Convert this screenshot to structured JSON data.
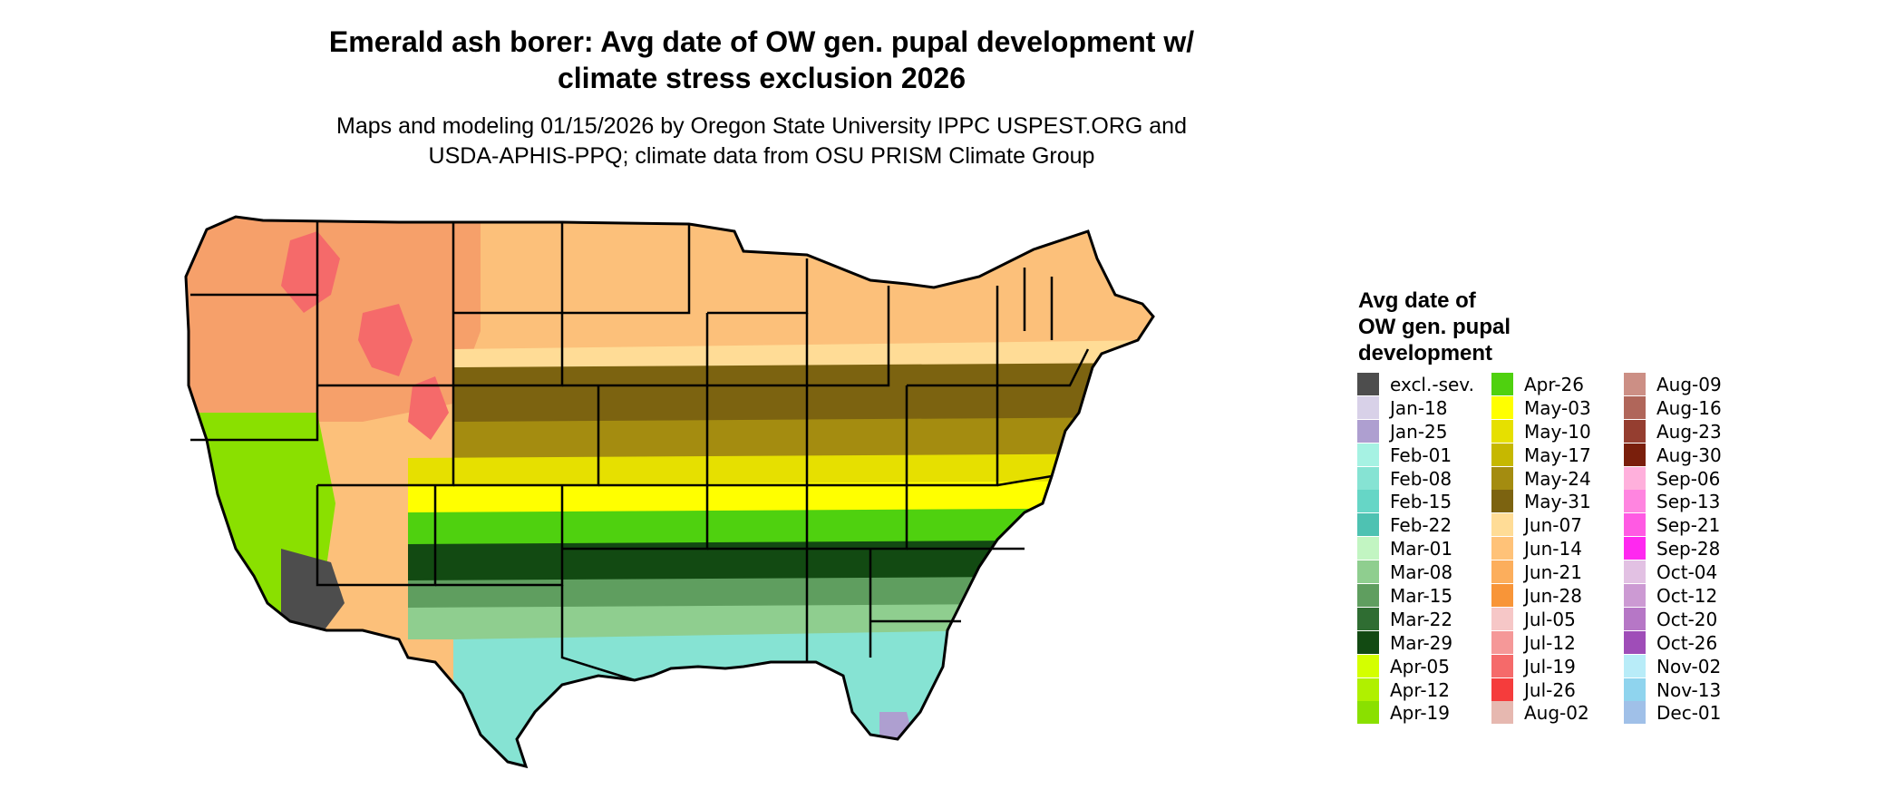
{
  "title": {
    "line1": "Emerald ash borer: Avg date of OW gen. pupal development w/",
    "line2": "climate stress exclusion 2026"
  },
  "subtitle": {
    "line1": "Maps and modeling 01/15/2026 by Oregon State University IPPC USPEST.ORG and",
    "line2": "USDA-APHIS-PPQ; climate data from OSU PRISM Climate Group"
  },
  "legend": {
    "title_lines": [
      "Avg date of",
      "OW gen. pupal",
      "development"
    ],
    "columns": [
      [
        {
          "label": "excl.-sev.",
          "color": "#4d4d4d"
        },
        {
          "label": "Jan-18",
          "color": "#d8d1e8"
        },
        {
          "label": "Jan-25",
          "color": "#ae9fd0"
        },
        {
          "label": "Feb-01",
          "color": "#a6f2e3"
        },
        {
          "label": "Feb-08",
          "color": "#86e3d3"
        },
        {
          "label": "Feb-15",
          "color": "#66d6c6"
        },
        {
          "label": "Feb-22",
          "color": "#4ec2b2"
        },
        {
          "label": "Mar-01",
          "color": "#c2f5c2"
        },
        {
          "label": "Mar-08",
          "color": "#8fce8f"
        },
        {
          "label": "Mar-15",
          "color": "#5f9e5f"
        },
        {
          "label": "Mar-22",
          "color": "#2f6d32"
        },
        {
          "label": "Mar-29",
          "color": "#124a12"
        },
        {
          "label": "Apr-05",
          "color": "#d4ff00"
        },
        {
          "label": "Apr-12",
          "color": "#b0f000"
        },
        {
          "label": "Apr-19",
          "color": "#8ae000"
        }
      ],
      [
        {
          "label": "Apr-26",
          "color": "#4fd10f"
        },
        {
          "label": "May-03",
          "color": "#ffff00"
        },
        {
          "label": "May-10",
          "color": "#e6e000"
        },
        {
          "label": "May-17",
          "color": "#c6b800"
        },
        {
          "label": "May-24",
          "color": "#a48c10"
        },
        {
          "label": "May-31",
          "color": "#7c6310"
        },
        {
          "label": "Jun-07",
          "color": "#ffdc96"
        },
        {
          "label": "Jun-14",
          "color": "#ffc278"
        },
        {
          "label": "Jun-21",
          "color": "#fcae5c"
        },
        {
          "label": "Jun-28",
          "color": "#f89538"
        },
        {
          "label": "Jul-05",
          "color": "#f6c7c7"
        },
        {
          "label": "Jul-12",
          "color": "#f59898"
        },
        {
          "label": "Jul-19",
          "color": "#f56a6a"
        },
        {
          "label": "Jul-26",
          "color": "#f53c3c"
        },
        {
          "label": "Aug-02",
          "color": "#e6b8b0"
        }
      ],
      [
        {
          "label": "Aug-09",
          "color": "#cc8f85"
        },
        {
          "label": "Aug-16",
          "color": "#b0665a"
        },
        {
          "label": "Aug-23",
          "color": "#953e30"
        },
        {
          "label": "Aug-30",
          "color": "#7a1f0c"
        },
        {
          "label": "Sep-06",
          "color": "#ffb0dc"
        },
        {
          "label": "Sep-13",
          "color": "#ff85e0"
        },
        {
          "label": "Sep-21",
          "color": "#ff5ae3"
        },
        {
          "label": "Sep-28",
          "color": "#ff28f0"
        },
        {
          "label": "Oct-04",
          "color": "#e2c1e3"
        },
        {
          "label": "Oct-12",
          "color": "#cc9ad3"
        },
        {
          "label": "Oct-20",
          "color": "#b677c6"
        },
        {
          "label": "Oct-26",
          "color": "#9f4db8"
        },
        {
          "label": "Nov-02",
          "color": "#b8ecf8"
        },
        {
          "label": "Nov-13",
          "color": "#8fd4ee"
        },
        {
          "label": "Dec-01",
          "color": "#a0c0e8"
        }
      ]
    ]
  },
  "map": {
    "zones": [
      {
        "id": "northern-plains",
        "color": "#fcc07a"
      },
      {
        "id": "mountain-west",
        "color": "#f6a06a"
      },
      {
        "id": "high-elevation",
        "color": "#f56a6a"
      },
      {
        "id": "upper-midwest",
        "color": "#ffdc96"
      },
      {
        "id": "central-band",
        "color": "#7c6310"
      },
      {
        "id": "mid-band",
        "color": "#a48c10"
      },
      {
        "id": "south-mid-band",
        "color": "#e6e000"
      },
      {
        "id": "yellow-band",
        "color": "#ffff00"
      },
      {
        "id": "green-band",
        "color": "#4fd10f"
      },
      {
        "id": "dark-green-band",
        "color": "#124a12"
      },
      {
        "id": "medium-green-band",
        "color": "#5f9e5f"
      },
      {
        "id": "light-green-band",
        "color": "#8fce8f"
      },
      {
        "id": "teal-gulf",
        "color": "#86e3d3"
      },
      {
        "id": "california-valley",
        "color": "#8ae000"
      },
      {
        "id": "desert-excluded",
        "color": "#4d4d4d"
      },
      {
        "id": "south-florida",
        "color": "#ae9fd0"
      }
    ]
  }
}
